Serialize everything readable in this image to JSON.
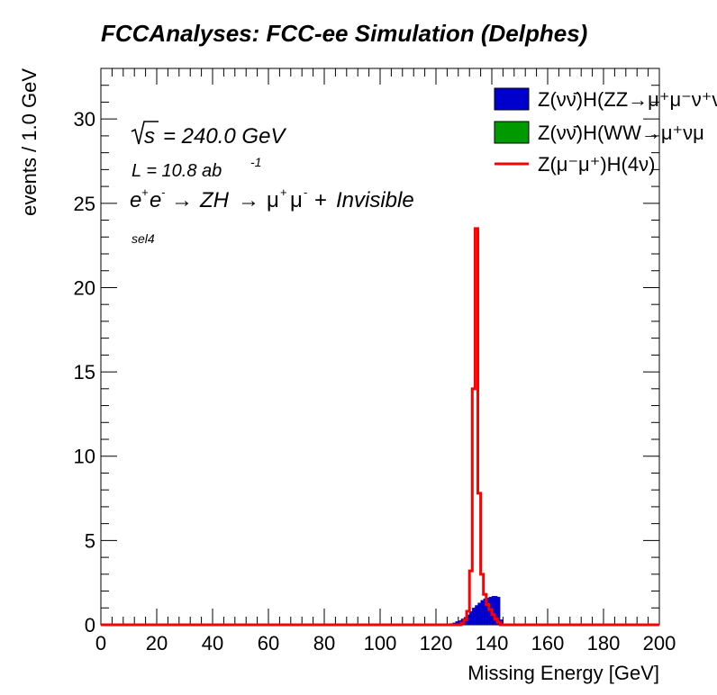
{
  "chart_data": {
    "type": "histogram",
    "title": "FCCAnalyses: FCC-ee Simulation (Delphes)",
    "xlabel": "Missing Energy [GeV]",
    "ylabel": "events / 1.0 GeV",
    "xlim": [
      0,
      200
    ],
    "ylim": [
      0,
      33
    ],
    "bin_width": 1.0,
    "x_ticks": [
      "0",
      "20",
      "40",
      "60",
      "80",
      "100",
      "120",
      "140",
      "160",
      "180",
      "200"
    ],
    "y_ticks": [
      "0",
      "5",
      "10",
      "15",
      "20",
      "25",
      "30"
    ],
    "grid": false,
    "legend_position": "top-right",
    "annotations": {
      "sqrt_s": "= 240.0 GeV",
      "lumi_prefix": "L = 10.8 ab",
      "lumi_exp": "-1",
      "process": "ZH  μ μ  + Invisible",
      "selection": "sel4"
    },
    "series": [
      {
        "name": "Z(νν̄)H(ZZ→μ⁺μ⁻ν⁺ν",
        "style": "filled",
        "color": "#0000cc",
        "x": [
          124,
          125,
          126,
          127,
          128,
          129,
          130,
          131,
          132,
          133,
          134,
          135,
          136,
          137,
          138,
          139,
          140,
          141,
          142,
          143,
          144
        ],
        "values": [
          0.05,
          0.08,
          0.12,
          0.2,
          0.25,
          0.35,
          0.45,
          0.6,
          0.8,
          1.0,
          1.15,
          1.3,
          1.45,
          1.55,
          1.6,
          1.65,
          1.7,
          1.7,
          1.65,
          0.3,
          0.0
        ]
      },
      {
        "name": "Z(νν̄)H(WW→μ⁺νμ",
        "style": "filled",
        "color": "#009900",
        "x": [],
        "values": []
      },
      {
        "name": "Z(μ⁻μ⁺)H(4ν)",
        "style": "line",
        "color": "#ff0000",
        "x": [
          129,
          130,
          131,
          132,
          133,
          134,
          135,
          136,
          137,
          138,
          139,
          140,
          141,
          142,
          143
        ],
        "values": [
          0.1,
          0.3,
          0.8,
          3.2,
          14.0,
          23.5,
          7.8,
          3.0,
          1.8,
          1.2,
          0.9,
          0.6,
          0.35,
          0.15,
          0.0
        ]
      }
    ]
  }
}
